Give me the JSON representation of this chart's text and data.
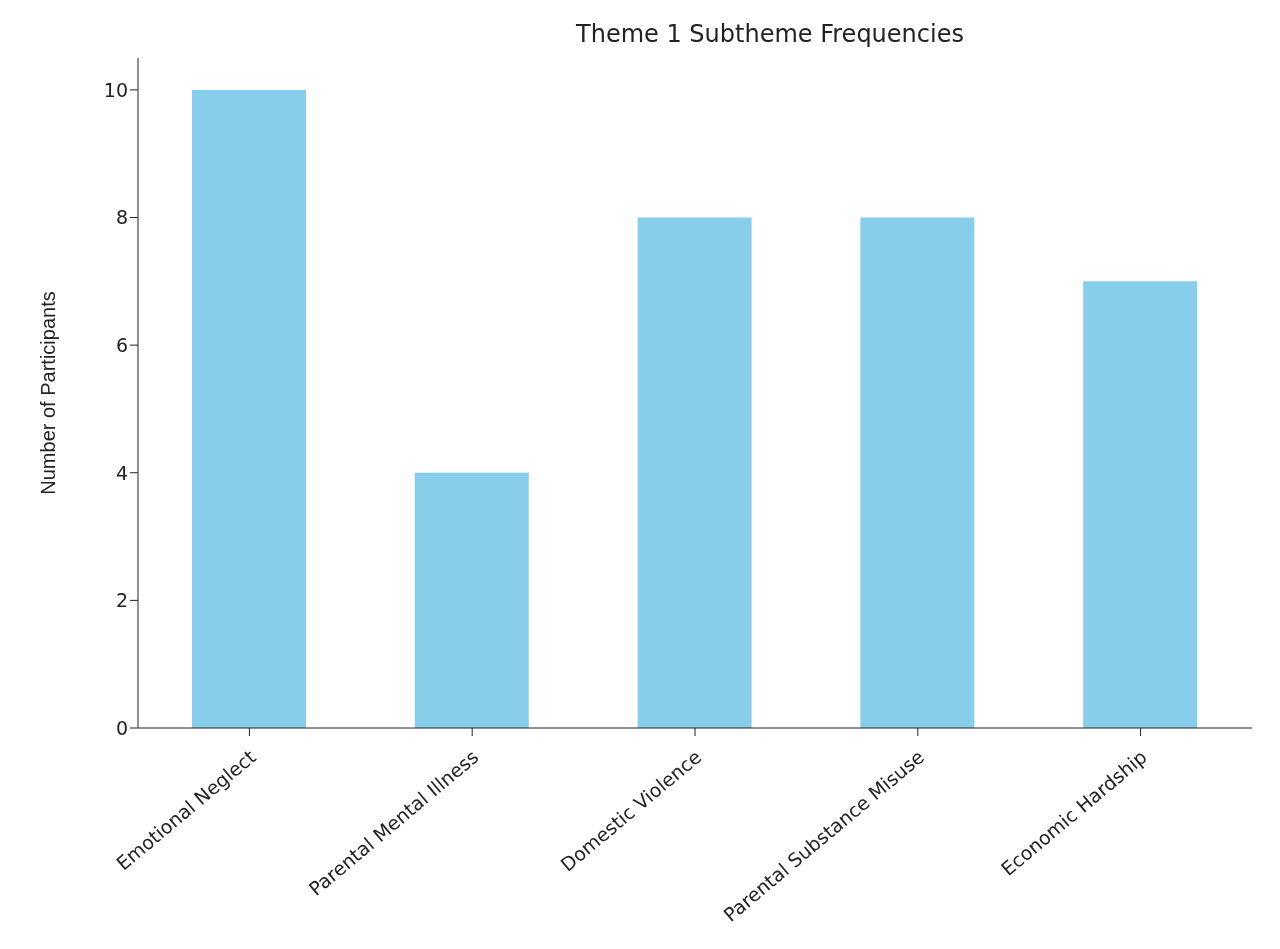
{
  "chart_data": {
    "type": "bar",
    "title": "Theme 1 Subtheme Frequencies",
    "ylabel": "Number of Participants",
    "categories": [
      "Emotional Neglect",
      "Parental Mental Illness",
      "Domestic Violence",
      "Parental Substance Misuse",
      "Economic Hardship"
    ],
    "values": [
      10,
      4,
      8,
      8,
      7
    ],
    "color": "#87ceeb",
    "ylim": [
      0,
      10.5
    ],
    "yticks": [
      0,
      2,
      4,
      6,
      8,
      10
    ],
    "grid": false
  }
}
